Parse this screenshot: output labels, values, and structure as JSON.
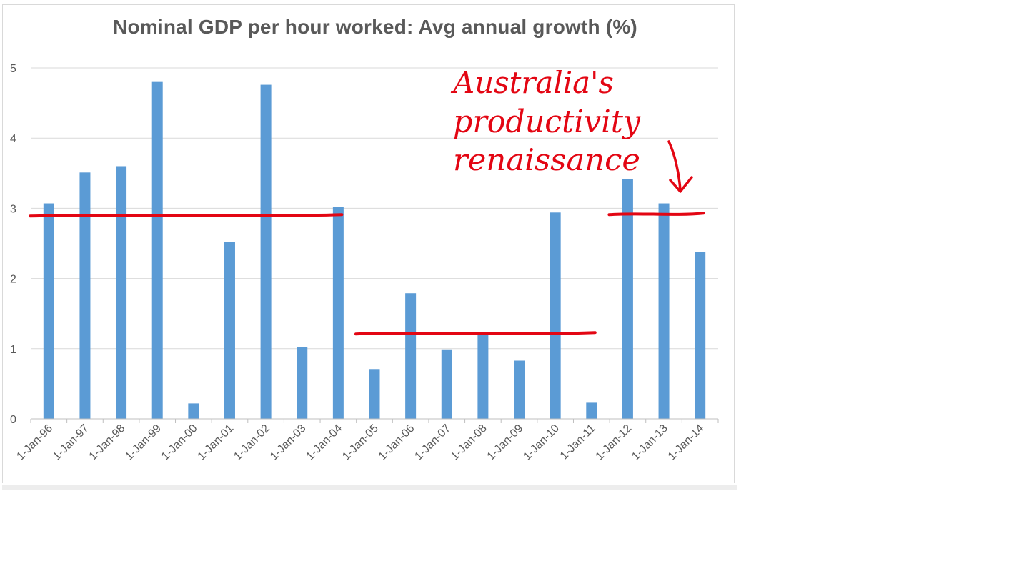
{
  "chart_data": {
    "type": "bar",
    "title": "Nominal GDP per hour worked: Avg annual growth (%)",
    "xlabel": "",
    "ylabel": "",
    "ylim": [
      0,
      5
    ],
    "yticks": [
      0,
      1,
      2,
      3,
      4,
      5
    ],
    "grid": true,
    "categories": [
      "1-Jan-96",
      "1-Jan-97",
      "1-Jan-98",
      "1-Jan-99",
      "1-Jan-00",
      "1-Jan-01",
      "1-Jan-02",
      "1-Jan-03",
      "1-Jan-04",
      "1-Jan-05",
      "1-Jan-06",
      "1-Jan-07",
      "1-Jan-08",
      "1-Jan-09",
      "1-Jan-10",
      "1-Jan-11",
      "1-Jan-12",
      "1-Jan-13",
      "1-Jan-14"
    ],
    "values": [
      3.07,
      3.51,
      3.6,
      4.8,
      0.22,
      2.52,
      4.76,
      1.02,
      3.02,
      0.71,
      1.79,
      0.99,
      1.22,
      0.83,
      2.94,
      0.23,
      3.42,
      3.07,
      2.38
    ],
    "bar_color": "#5b9bd5",
    "annotations": {
      "text_lines": [
        "Australia's",
        "productivity",
        "renaissance"
      ],
      "color": "#e30613",
      "average_lines": [
        {
          "from": "1-Jan-96",
          "to": "1-Jan-04",
          "value": 2.9
        },
        {
          "from": "1-Jan-05",
          "to": "1-Jan-11",
          "value": 1.22
        },
        {
          "from": "1-Jan-12",
          "to": "1-Jan-14",
          "value": 2.92
        }
      ]
    }
  }
}
